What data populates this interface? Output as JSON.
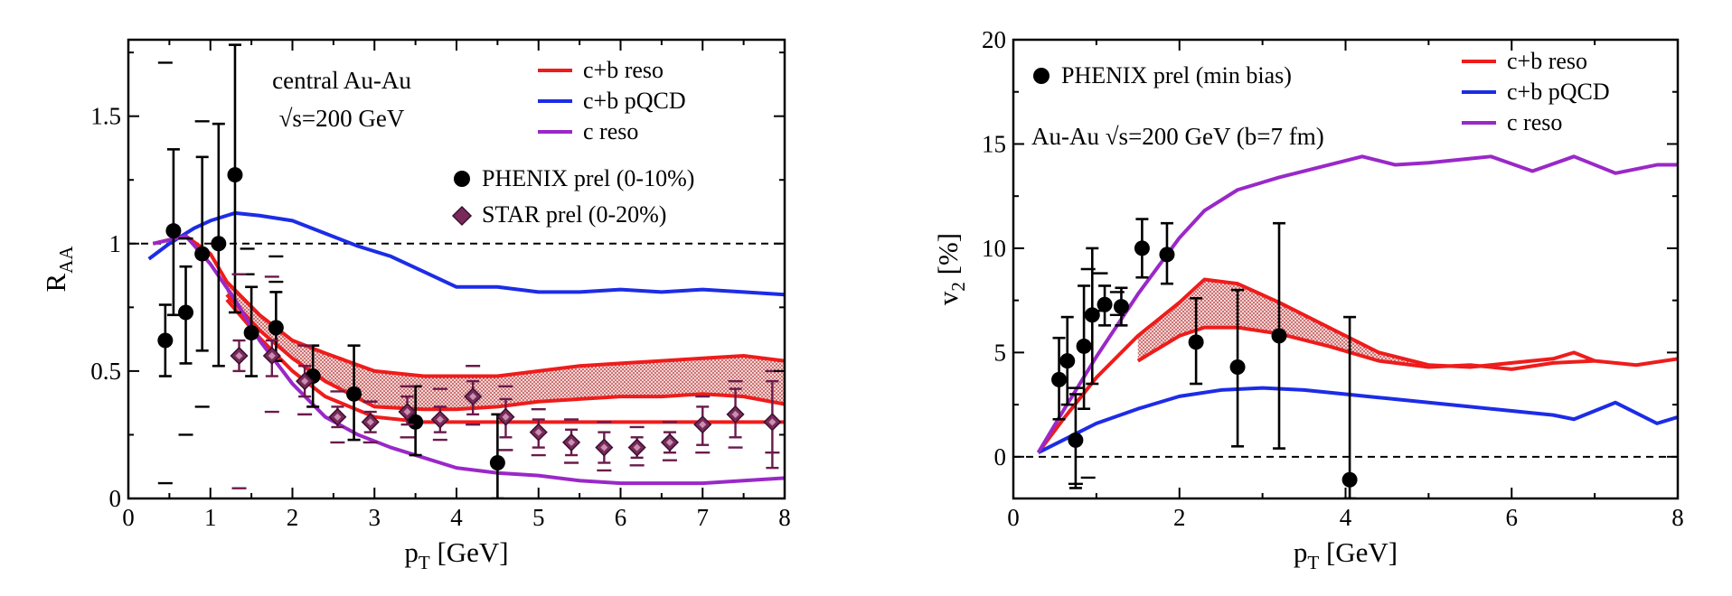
{
  "chart_data": [
    {
      "type": "line",
      "id": "raa",
      "title": "",
      "xlabel_main": "p",
      "xlabel_sub": "T",
      "xlabel_rest": " [GeV]",
      "ylabel_main": "R",
      "ylabel_sub": "AA",
      "xlim": [
        0,
        8
      ],
      "ylim": [
        0,
        1.8
      ],
      "xticks": [
        0,
        1,
        2,
        3,
        4,
        5,
        6,
        7,
        8
      ],
      "yticks": [
        0,
        0.5,
        1,
        1.5
      ],
      "ytick_labels": [
        "0",
        "0.5",
        "1",
        "1.5"
      ],
      "annotations": [
        "central Au-Au",
        "√s=200 GeV"
      ],
      "reference_line": 1,
      "band": {
        "color": "#e8a0a0",
        "x": [
          1.2,
          1.6,
          2.0,
          2.4,
          3.0,
          3.6,
          4.0,
          4.5,
          5.0,
          5.5,
          6.0,
          6.5,
          7.0,
          7.5,
          8.0
        ],
        "upper": [
          0.85,
          0.72,
          0.62,
          0.57,
          0.5,
          0.48,
          0.48,
          0.48,
          0.5,
          0.52,
          0.53,
          0.54,
          0.55,
          0.56,
          0.54
        ],
        "lower": [
          0.8,
          0.66,
          0.55,
          0.46,
          0.36,
          0.35,
          0.35,
          0.36,
          0.38,
          0.39,
          0.4,
          0.4,
          0.41,
          0.4,
          0.37
        ]
      },
      "series": [
        {
          "name": "c+b reso",
          "color": "#ee1c1c",
          "x": [
            0.3,
            0.7,
            1.0,
            1.2,
            1.6,
            2.0,
            2.4,
            3.0,
            3.6,
            4.0,
            4.5,
            5.0,
            5.5,
            6.0,
            6.5,
            7.0,
            7.5,
            8.0
          ],
          "y": [
            1.0,
            1.03,
            0.96,
            0.85,
            0.72,
            0.62,
            0.57,
            0.5,
            0.48,
            0.48,
            0.48,
            0.5,
            0.52,
            0.53,
            0.54,
            0.55,
            0.56,
            0.54
          ]
        },
        {
          "name": "c+b reso lower",
          "color": "#ee1c1c",
          "x": [
            1.2,
            1.6,
            2.0,
            2.4,
            3.0,
            3.6,
            4.0,
            4.5,
            5.0,
            5.5,
            6.0,
            6.5,
            7.0,
            7.5,
            8.0
          ],
          "y": [
            0.8,
            0.66,
            0.55,
            0.46,
            0.36,
            0.35,
            0.35,
            0.36,
            0.38,
            0.39,
            0.4,
            0.4,
            0.41,
            0.4,
            0.37
          ]
        },
        {
          "name": "c+b reso bottom",
          "color": "#ee1c1c",
          "x": [
            1.2,
            1.6,
            2.0,
            2.4,
            3.0,
            3.6,
            4.0,
            4.5,
            5.0,
            5.5,
            6.0,
            6.5,
            7.0,
            7.5,
            8.0
          ],
          "y": [
            0.78,
            0.63,
            0.5,
            0.4,
            0.32,
            0.3,
            0.3,
            0.3,
            0.3,
            0.3,
            0.3,
            0.3,
            0.3,
            0.3,
            0.3
          ]
        },
        {
          "name": "c+b pQCD",
          "color": "#1c2ce6",
          "x": [
            0.25,
            0.5,
            0.8,
            1.0,
            1.3,
            1.6,
            2.0,
            2.4,
            2.8,
            3.2,
            3.6,
            4.0,
            4.5,
            5.0,
            5.5,
            6.0,
            6.5,
            7.0,
            7.5,
            8.0
          ],
          "y": [
            0.94,
            1.0,
            1.06,
            1.09,
            1.12,
            1.11,
            1.09,
            1.04,
            0.99,
            0.95,
            0.89,
            0.83,
            0.83,
            0.81,
            0.81,
            0.82,
            0.81,
            0.82,
            0.81,
            0.8
          ]
        },
        {
          "name": "c reso",
          "color": "#9a28c8",
          "x": [
            0.3,
            0.7,
            1.0,
            1.3,
            1.6,
            2.0,
            2.4,
            2.8,
            3.2,
            3.6,
            4.0,
            4.5,
            5.0,
            5.5,
            6.0,
            6.5,
            7.0,
            7.5,
            8.0
          ],
          "y": [
            1.0,
            1.03,
            0.92,
            0.78,
            0.62,
            0.45,
            0.32,
            0.25,
            0.2,
            0.16,
            0.12,
            0.1,
            0.09,
            0.07,
            0.06,
            0.06,
            0.06,
            0.07,
            0.08
          ]
        }
      ],
      "legend_lines": [
        "c+b reso",
        "c+b pQCD",
        "c reso"
      ],
      "data_sets": [
        {
          "name": "PHENIX prel (0-10%)",
          "marker": "circle",
          "color": "#000000",
          "points": [
            {
              "x": 0.45,
              "y": 0.62,
              "lo": 0.48,
              "hi": 0.76
            },
            {
              "x": 0.55,
              "y": 1.05,
              "lo": 0.72,
              "hi": 1.37
            },
            {
              "x": 0.7,
              "y": 0.73,
              "lo": 0.53,
              "hi": 0.91
            },
            {
              "x": 0.9,
              "y": 0.96,
              "lo": 0.58,
              "hi": 1.34
            },
            {
              "x": 1.1,
              "y": 1.0,
              "lo": 0.52,
              "hi": 1.47
            },
            {
              "x": 1.3,
              "y": 1.27,
              "lo": 0.73,
              "hi": 1.78
            },
            {
              "x": 1.5,
              "y": 0.65,
              "lo": 0.48,
              "hi": 0.83
            },
            {
              "x": 1.8,
              "y": 0.67,
              "lo": 0.54,
              "hi": 0.81
            },
            {
              "x": 2.25,
              "y": 0.48,
              "lo": 0.36,
              "hi": 0.6
            },
            {
              "x": 2.75,
              "y": 0.41,
              "lo": 0.23,
              "hi": 0.6
            },
            {
              "x": 3.5,
              "y": 0.3,
              "lo": 0.17,
              "hi": 0.44
            },
            {
              "x": 4.5,
              "y": 0.14,
              "lo": 0.0,
              "hi": 0.33
            }
          ],
          "sys": [
            {
              "x": 0.45,
              "lo": 0.06,
              "hi": 1.71
            },
            {
              "x": 0.9,
              "lo": 0.36,
              "hi": 1.48
            },
            {
              "x": 0.7,
              "lo": 0.25,
              "hi": 1.02
            },
            {
              "x": 1.45,
              "lo": 0.88,
              "hi": 0.98
            },
            {
              "x": 1.8,
              "lo": 0.85,
              "hi": 0.95
            }
          ]
        },
        {
          "name": "STAR prel (0-20%)",
          "marker": "diamond",
          "color": "#7a2a5a",
          "points": [
            {
              "x": 1.35,
              "y": 0.56,
              "lo": 0.5,
              "hi": 0.62
            },
            {
              "x": 1.75,
              "y": 0.56,
              "lo": 0.48,
              "hi": 0.62
            },
            {
              "x": 2.15,
              "y": 0.46,
              "lo": 0.4,
              "hi": 0.52
            },
            {
              "x": 2.55,
              "y": 0.32,
              "lo": 0.28,
              "hi": 0.36
            },
            {
              "x": 2.95,
              "y": 0.3,
              "lo": 0.26,
              "hi": 0.34
            },
            {
              "x": 3.4,
              "y": 0.34,
              "lo": 0.29,
              "hi": 0.4
            },
            {
              "x": 3.8,
              "y": 0.31,
              "lo": 0.26,
              "hi": 0.36
            },
            {
              "x": 4.2,
              "y": 0.4,
              "lo": 0.33,
              "hi": 0.46
            },
            {
              "x": 4.6,
              "y": 0.32,
              "lo": 0.24,
              "hi": 0.39
            },
            {
              "x": 5.0,
              "y": 0.26,
              "lo": 0.2,
              "hi": 0.31
            },
            {
              "x": 5.4,
              "y": 0.22,
              "lo": 0.17,
              "hi": 0.27
            },
            {
              "x": 5.8,
              "y": 0.2,
              "lo": 0.14,
              "hi": 0.26
            },
            {
              "x": 6.2,
              "y": 0.2,
              "lo": 0.16,
              "hi": 0.24
            },
            {
              "x": 6.6,
              "y": 0.22,
              "lo": 0.18,
              "hi": 0.26
            },
            {
              "x": 7.0,
              "y": 0.29,
              "lo": 0.21,
              "hi": 0.36
            },
            {
              "x": 7.4,
              "y": 0.33,
              "lo": 0.24,
              "hi": 0.43
            },
            {
              "x": 7.85,
              "y": 0.3,
              "lo": 0.12,
              "hi": 0.46
            }
          ],
          "sys": [
            {
              "x": 1.35,
              "lo": 0.04,
              "hi": 0.88
            },
            {
              "x": 1.75,
              "lo": 0.34,
              "hi": 0.87
            },
            {
              "x": 2.15,
              "lo": 0.33,
              "hi": 0.6
            },
            {
              "x": 2.55,
              "lo": 0.22,
              "hi": 0.42
            },
            {
              "x": 2.95,
              "lo": 0.22,
              "hi": 0.38
            },
            {
              "x": 3.4,
              "lo": 0.24,
              "hi": 0.44
            },
            {
              "x": 3.8,
              "lo": 0.23,
              "hi": 0.43
            },
            {
              "x": 4.2,
              "lo": 0.29,
              "hi": 0.52
            },
            {
              "x": 4.6,
              "lo": 0.19,
              "hi": 0.44
            },
            {
              "x": 5.0,
              "lo": 0.17,
              "hi": 0.35
            },
            {
              "x": 5.4,
              "lo": 0.14,
              "hi": 0.31
            },
            {
              "x": 5.8,
              "lo": 0.11,
              "hi": 0.3
            },
            {
              "x": 6.2,
              "lo": 0.13,
              "hi": 0.28
            },
            {
              "x": 6.6,
              "lo": 0.15,
              "hi": 0.3
            },
            {
              "x": 7.0,
              "lo": 0.18,
              "hi": 0.4
            },
            {
              "x": 7.4,
              "lo": 0.2,
              "hi": 0.46
            },
            {
              "x": 7.85,
              "lo": 0.18,
              "hi": 0.5
            }
          ]
        }
      ]
    },
    {
      "type": "line",
      "id": "v2",
      "title": "",
      "xlabel_main": "p",
      "xlabel_sub": "T",
      "xlabel_rest": " [GeV]",
      "ylabel_main": "v",
      "ylabel_sub": "2",
      "ylabel_rest": " [%]",
      "xlim": [
        0,
        8
      ],
      "ylim": [
        -2,
        20
      ],
      "xticks": [
        0,
        2,
        4,
        6,
        8
      ],
      "yticks": [
        0,
        5,
        10,
        15,
        20
      ],
      "ytick_labels": [
        "0",
        "5",
        "10",
        "15",
        "20"
      ],
      "annotations": [
        "Au-Au √s=200 GeV (b=7 fm)"
      ],
      "reference_line": 0,
      "band": {
        "color": "#e8a0a0",
        "x": [
          1.5,
          2.0,
          2.3,
          2.7,
          3.2,
          3.8,
          4.4,
          5.0
        ],
        "upper": [
          5.8,
          7.4,
          8.5,
          8.3,
          7.4,
          6.2,
          5.0,
          4.4
        ],
        "lower": [
          4.6,
          5.8,
          6.2,
          6.2,
          5.9,
          5.3,
          4.6,
          4.3
        ]
      },
      "series": [
        {
          "name": "c+b reso",
          "color": "#ee1c1c",
          "x": [
            0.3,
            0.6,
            1.0,
            1.5,
            2.0,
            2.3,
            2.7,
            3.2,
            3.8,
            4.4,
            5.0,
            5.5,
            6.0,
            6.5,
            6.75,
            7.0,
            7.5,
            8.0
          ],
          "y": [
            0.2,
            1.8,
            3.8,
            5.8,
            7.4,
            8.5,
            8.3,
            7.4,
            6.2,
            5.0,
            4.4,
            4.3,
            4.5,
            4.7,
            5.0,
            4.6,
            4.4,
            4.7
          ]
        },
        {
          "name": "c+b reso lower",
          "color": "#ee1c1c",
          "x": [
            1.5,
            2.0,
            2.3,
            2.7,
            3.2,
            3.8,
            4.4,
            5.0,
            5.5,
            6.0,
            6.5,
            7.0
          ],
          "y": [
            4.6,
            5.8,
            6.2,
            6.2,
            5.9,
            5.3,
            4.6,
            4.3,
            4.4,
            4.2,
            4.5,
            4.6
          ]
        },
        {
          "name": "c+b pQCD",
          "color": "#1c2ce6",
          "x": [
            0.3,
            0.6,
            1.0,
            1.5,
            2.0,
            2.5,
            3.0,
            3.5,
            4.0,
            4.5,
            5.0,
            5.5,
            6.0,
            6.5,
            6.75,
            7.25,
            7.75,
            8.0
          ],
          "y": [
            0.2,
            0.8,
            1.6,
            2.3,
            2.9,
            3.2,
            3.3,
            3.2,
            3.0,
            2.8,
            2.6,
            2.4,
            2.2,
            2.0,
            1.8,
            2.6,
            1.6,
            1.9
          ]
        },
        {
          "name": "c reso",
          "color": "#9a28c8",
          "x": [
            0.3,
            0.6,
            1.0,
            1.5,
            2.0,
            2.3,
            2.7,
            3.2,
            3.8,
            4.2,
            4.6,
            5.0,
            5.5,
            5.75,
            6.25,
            6.75,
            7.25,
            7.75,
            8.0
          ],
          "y": [
            0.2,
            2.2,
            4.8,
            7.8,
            10.5,
            11.8,
            12.8,
            13.4,
            14.0,
            14.4,
            14.0,
            14.1,
            14.3,
            14.4,
            13.7,
            14.4,
            13.6,
            14.0,
            14.0
          ]
        }
      ],
      "legend_lines": [
        "c+b reso",
        "c+b pQCD",
        "c reso"
      ],
      "data_sets": [
        {
          "name": "PHENIX prel (min bias)",
          "marker": "circle",
          "color": "#000000",
          "points": [
            {
              "x": 0.55,
              "y": 3.7,
              "lo": 1.8,
              "hi": 5.7
            },
            {
              "x": 0.65,
              "y": 4.6,
              "lo": 2.5,
              "hi": 6.7
            },
            {
              "x": 0.75,
              "y": 0.8,
              "lo": -1.5,
              "hi": 3.0
            },
            {
              "x": 0.85,
              "y": 5.3,
              "lo": 2.3,
              "hi": 8.2
            },
            {
              "x": 0.95,
              "y": 6.8,
              "lo": 3.5,
              "hi": 10.0
            },
            {
              "x": 1.1,
              "y": 7.3,
              "lo": 6.3,
              "hi": 8.2
            },
            {
              "x": 1.3,
              "y": 7.2,
              "lo": 6.3,
              "hi": 8.1
            },
            {
              "x": 1.55,
              "y": 10.0,
              "lo": 8.6,
              "hi": 11.4
            },
            {
              "x": 1.85,
              "y": 9.7,
              "lo": 8.3,
              "hi": 11.2
            },
            {
              "x": 2.2,
              "y": 5.5,
              "lo": 3.5,
              "hi": 7.6
            },
            {
              "x": 2.7,
              "y": 4.3,
              "lo": 0.5,
              "hi": 8.0
            },
            {
              "x": 3.2,
              "y": 5.8,
              "lo": 0.4,
              "hi": 11.2
            },
            {
              "x": 4.05,
              "y": -1.1,
              "lo": -2.0,
              "hi": 6.7
            }
          ],
          "sys": [
            {
              "x": 0.75,
              "lo": -1.3,
              "hi": 3.3
            },
            {
              "x": 0.9,
              "lo": -1.0,
              "hi": 9.0
            },
            {
              "x": 1.05,
              "lo": 7.0,
              "hi": 8.8
            },
            {
              "x": 1.25,
              "lo": 6.8,
              "hi": 7.9
            }
          ]
        }
      ]
    }
  ]
}
